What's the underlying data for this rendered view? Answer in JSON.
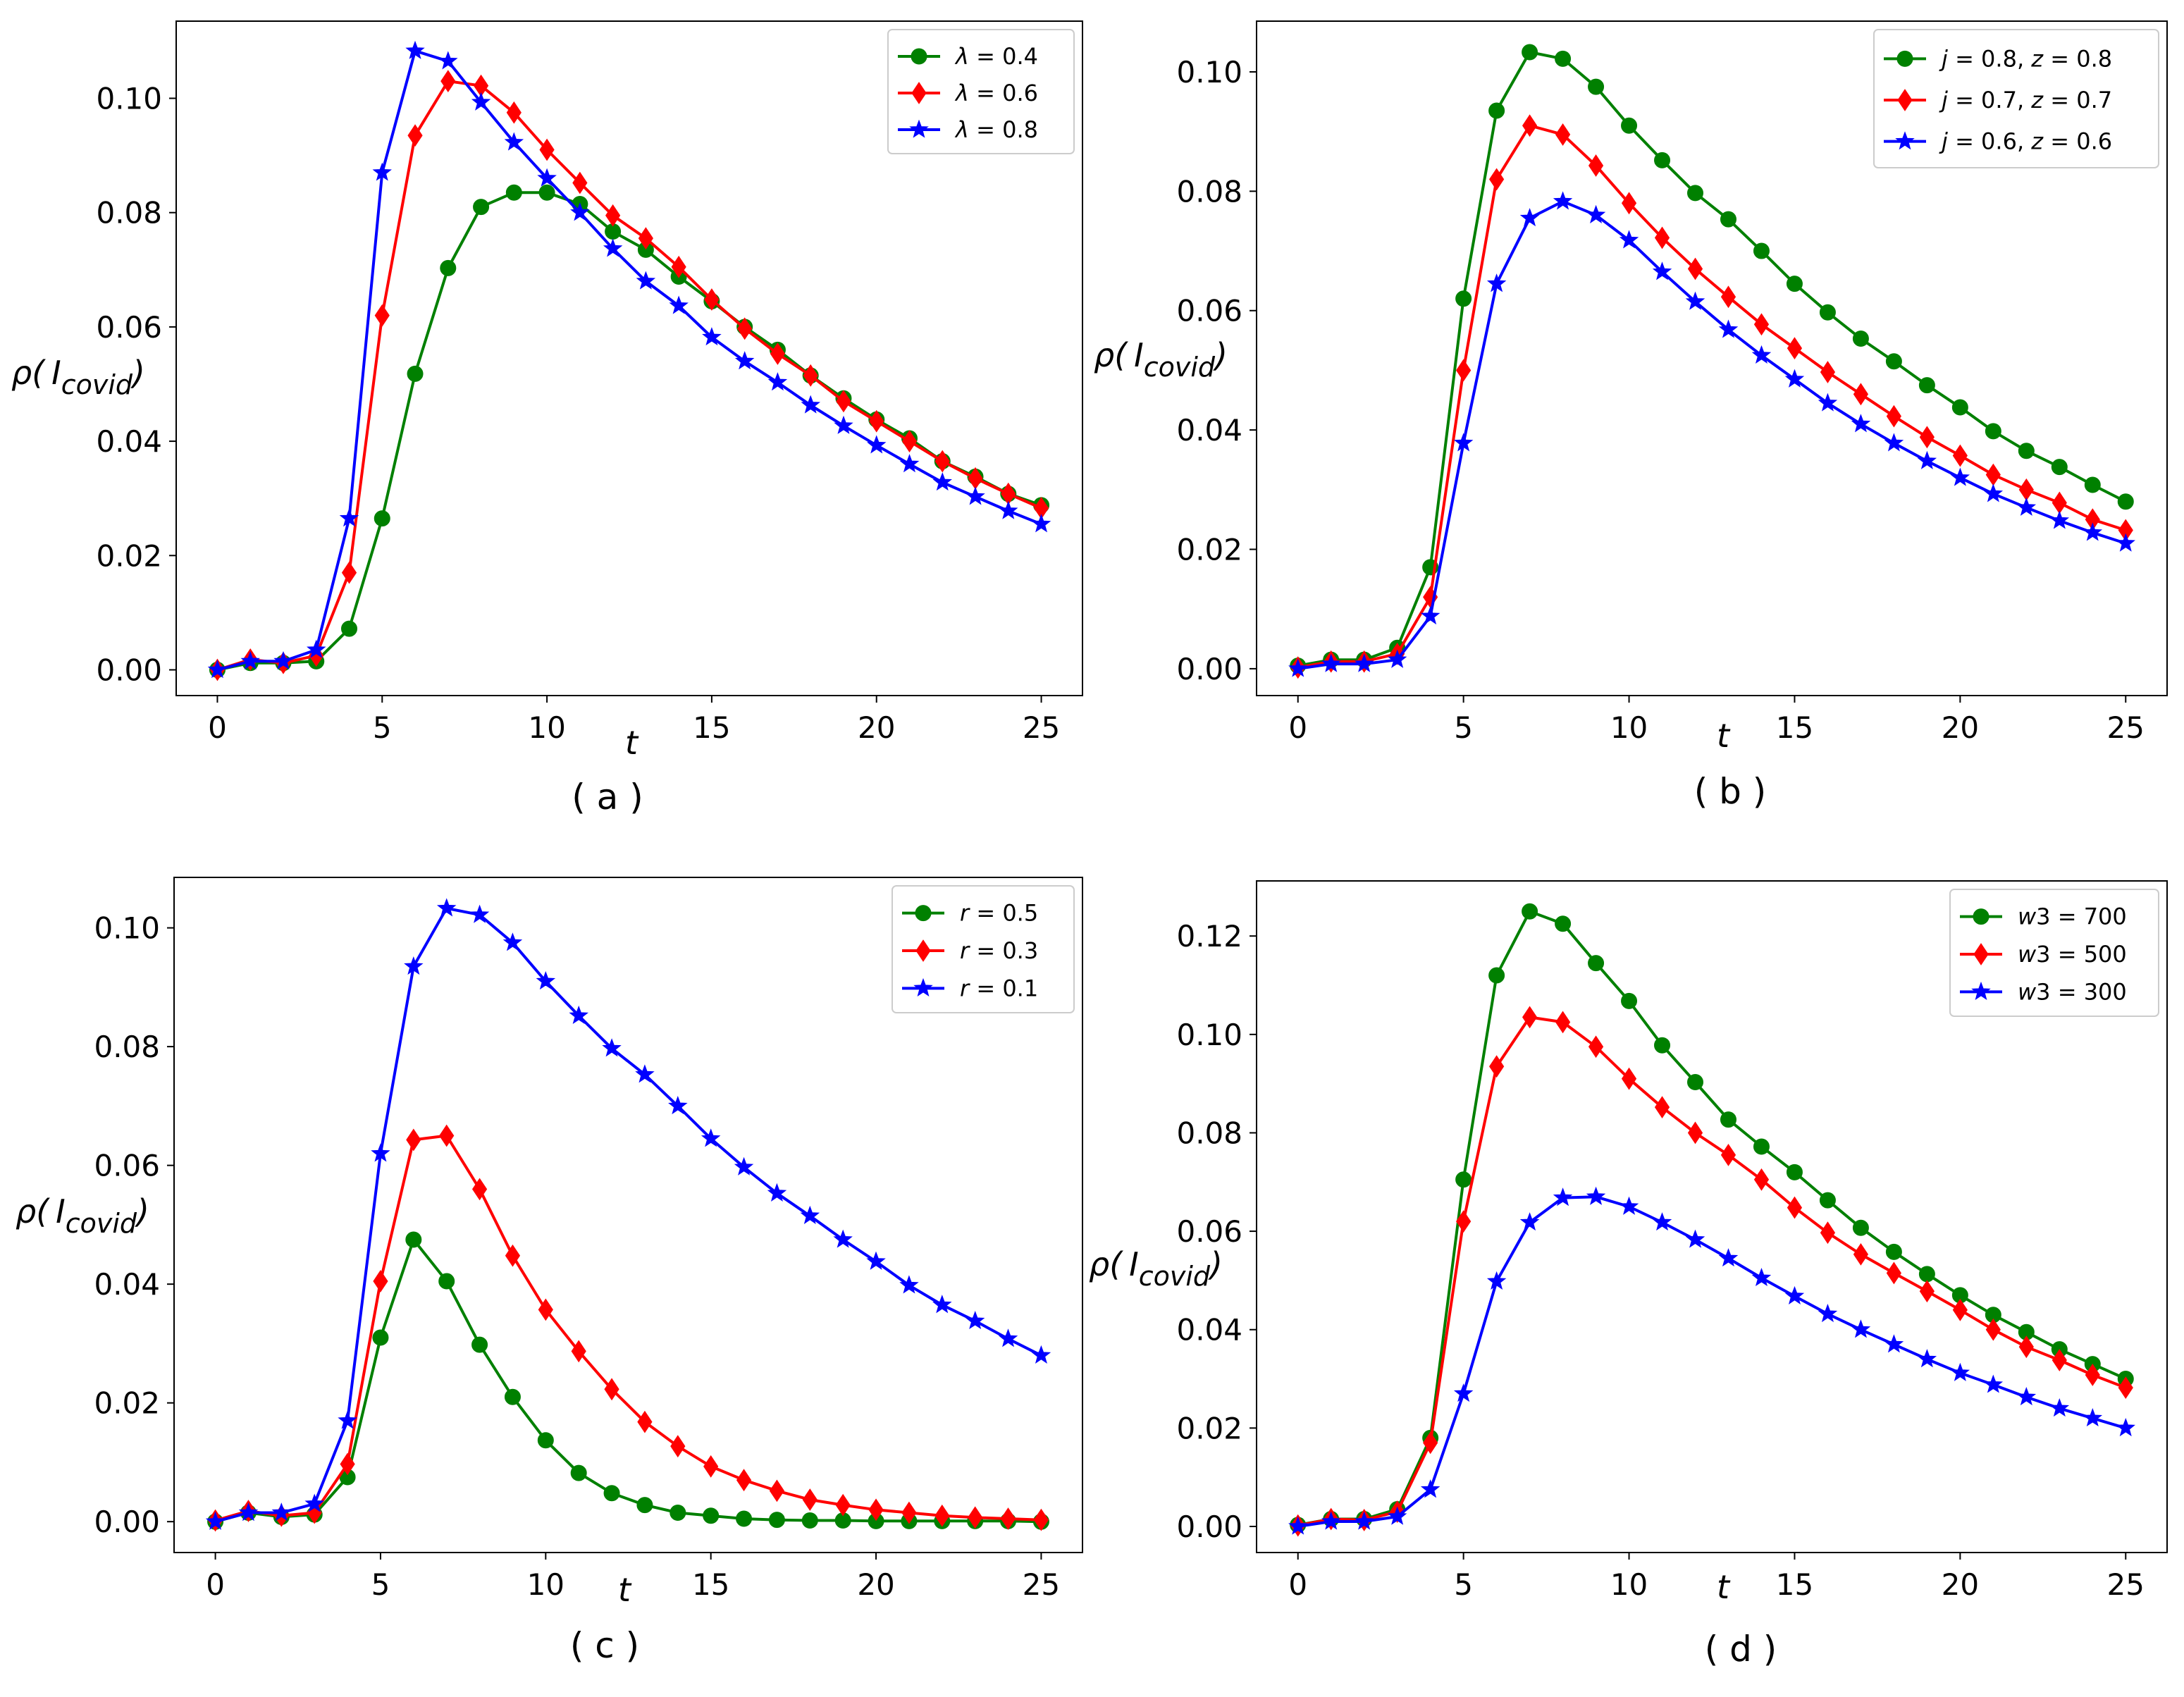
{
  "figure_captions": [
    "( a )",
    "( b )",
    "( c )",
    "( d )"
  ],
  "colors": {
    "green": "#008000",
    "red": "#ff0000",
    "blue": "#0000ff"
  },
  "chart_data": [
    {
      "type": "line",
      "caption": "( a )",
      "title": "",
      "xlabel": "t",
      "ylabel_symbol": "ρ(",
      "ylabel_var": "I",
      "ylabel_sub": "covid",
      "ylabel_close": ")",
      "xlim": [
        -1.25,
        26.25
      ],
      "ylim": [
        -0.0045,
        0.1135
      ],
      "xticks": [
        0,
        5,
        10,
        15,
        20,
        25
      ],
      "xtick_labels": [
        "0",
        "5",
        "10",
        "15",
        "20",
        "25"
      ],
      "yticks": [
        0.0,
        0.02,
        0.04,
        0.06,
        0.08,
        0.1
      ],
      "ytick_labels": [
        "0.00",
        "0.02",
        "0.04",
        "0.06",
        "0.08",
        "0.10"
      ],
      "legend_position": "top-right",
      "x": [
        0,
        1,
        2,
        3,
        4,
        5,
        6,
        7,
        8,
        9,
        10,
        11,
        12,
        13,
        14,
        15,
        16,
        17,
        18,
        19,
        20,
        21,
        22,
        23,
        24,
        25
      ],
      "series": [
        {
          "name": "λ = 0.4",
          "var": "λ",
          "rest": " = 0.4",
          "color": "#008000",
          "marker": "circle",
          "values": [
            0.0,
            0.0012,
            0.0012,
            0.0015,
            0.0072,
            0.0265,
            0.0518,
            0.0703,
            0.081,
            0.0835,
            0.0835,
            0.0815,
            0.0767,
            0.0735,
            0.0688,
            0.0645,
            0.06,
            0.056,
            0.0515,
            0.0475,
            0.0438,
            0.0405,
            0.0365,
            0.0338,
            0.0308,
            0.0288
          ]
        },
        {
          "name": "λ = 0.6",
          "var": "λ",
          "rest": " = 0.6",
          "color": "#ff0000",
          "marker": "diamond",
          "values": [
            0.0,
            0.0018,
            0.0012,
            0.0025,
            0.017,
            0.062,
            0.0935,
            0.103,
            0.1022,
            0.0975,
            0.091,
            0.0852,
            0.0795,
            0.0755,
            0.0705,
            0.0648,
            0.0597,
            0.0553,
            0.0515,
            0.047,
            0.0435,
            0.04,
            0.0365,
            0.0335,
            0.0308,
            0.0283
          ]
        },
        {
          "name": "λ = 0.8",
          "var": "λ",
          "rest": " = 0.8",
          "color": "#0000ff",
          "marker": "star",
          "values": [
            0.0,
            0.0015,
            0.0015,
            0.0035,
            0.0265,
            0.087,
            0.1083,
            0.1065,
            0.0993,
            0.0923,
            0.086,
            0.08,
            0.0737,
            0.068,
            0.0637,
            0.0582,
            0.054,
            0.0503,
            0.0463,
            0.0427,
            0.0393,
            0.036,
            0.0328,
            0.0303,
            0.0278,
            0.0255
          ]
        }
      ]
    },
    {
      "type": "line",
      "caption": "( b )",
      "title": "",
      "xlabel": "t",
      "ylabel_symbol": "ρ(",
      "ylabel_var": "I",
      "ylabel_sub": "covid",
      "ylabel_close": ")",
      "xlim": [
        -1.25,
        26.25
      ],
      "ylim": [
        -0.0045,
        0.1085
      ],
      "xticks": [
        0,
        5,
        10,
        15,
        20,
        25
      ],
      "xtick_labels": [
        "0",
        "5",
        "10",
        "15",
        "20",
        "25"
      ],
      "yticks": [
        0.0,
        0.02,
        0.04,
        0.06,
        0.08,
        0.1
      ],
      "ytick_labels": [
        "0.00",
        "0.02",
        "0.04",
        "0.06",
        "0.08",
        "0.10"
      ],
      "legend_position": "top-right",
      "x": [
        0,
        1,
        2,
        3,
        4,
        5,
        6,
        7,
        8,
        9,
        10,
        11,
        12,
        13,
        14,
        15,
        16,
        17,
        18,
        19,
        20,
        21,
        22,
        23,
        24,
        25
      ],
      "series": [
        {
          "name": "j = 0.8, z = 0.8",
          "var": "j",
          "rest": " = 0.8, ",
          "var2": "z",
          "rest2": " = 0.8",
          "color": "#008000",
          "marker": "circle",
          "values": [
            0.0005,
            0.0015,
            0.0015,
            0.0035,
            0.017,
            0.062,
            0.0935,
            0.1033,
            0.1022,
            0.0975,
            0.091,
            0.0852,
            0.0797,
            0.0753,
            0.07,
            0.0645,
            0.0597,
            0.0553,
            0.0515,
            0.0475,
            0.0438,
            0.0398,
            0.0365,
            0.0338,
            0.0308,
            0.028
          ]
        },
        {
          "name": "j = 0.7, z = 0.7",
          "var": "j",
          "rest": " = 0.7, ",
          "var2": "z",
          "rest2": " = 0.7",
          "color": "#ff0000",
          "marker": "diamond",
          "values": [
            0.0002,
            0.0012,
            0.0012,
            0.0025,
            0.012,
            0.05,
            0.082,
            0.091,
            0.0895,
            0.0843,
            0.078,
            0.0722,
            0.067,
            0.0623,
            0.0577,
            0.0537,
            0.0497,
            0.046,
            0.0423,
            0.0388,
            0.0357,
            0.0325,
            0.03,
            0.0278,
            0.025,
            0.0232
          ]
        },
        {
          "name": "j = 0.6, z = 0.6",
          "var": "j",
          "rest": " = 0.6, ",
          "var2": "z",
          "rest2": " = 0.6",
          "color": "#0000ff",
          "marker": "star",
          "values": [
            0.0,
            0.0008,
            0.0008,
            0.0015,
            0.0088,
            0.0378,
            0.0645,
            0.0755,
            0.0783,
            0.076,
            0.0718,
            0.0665,
            0.0615,
            0.0568,
            0.0525,
            0.0485,
            0.0445,
            0.041,
            0.0378,
            0.0348,
            0.032,
            0.0293,
            0.027,
            0.0248,
            0.0228,
            0.021
          ]
        }
      ]
    },
    {
      "type": "line",
      "caption": "( c )",
      "title": "",
      "xlabel": "t",
      "ylabel_symbol": "ρ(",
      "ylabel_var": "I",
      "ylabel_sub": "covid",
      "ylabel_close": ")",
      "xlim": [
        -1.25,
        26.25
      ],
      "ylim": [
        -0.0052,
        0.1085
      ],
      "xticks": [
        0,
        5,
        10,
        15,
        20,
        25
      ],
      "xtick_labels": [
        "0",
        "5",
        "10",
        "15",
        "20",
        "25"
      ],
      "yticks": [
        0.0,
        0.02,
        0.04,
        0.06,
        0.08,
        0.1
      ],
      "ytick_labels": [
        "0.00",
        "0.02",
        "0.04",
        "0.06",
        "0.08",
        "0.10"
      ],
      "legend_position": "top-right",
      "x": [
        0,
        1,
        2,
        3,
        4,
        5,
        6,
        7,
        8,
        9,
        10,
        11,
        12,
        13,
        14,
        15,
        16,
        17,
        18,
        19,
        20,
        21,
        22,
        23,
        24,
        25
      ],
      "series": [
        {
          "name": "r = 0.5",
          "var": "r",
          "rest": " = 0.5",
          "color": "#008000",
          "marker": "circle",
          "values": [
            0.0,
            0.0015,
            0.0008,
            0.0012,
            0.0075,
            0.031,
            0.0475,
            0.0405,
            0.0298,
            0.021,
            0.0137,
            0.0082,
            0.0048,
            0.0028,
            0.0015,
            0.001,
            0.0005,
            0.0003,
            0.0002,
            0.0002,
            0.0001,
            0.0001,
            0.0001,
            0.0001,
            0.0001,
            0.0
          ]
        },
        {
          "name": "r = 0.3",
          "var": "r",
          "rest": " = 0.3",
          "color": "#ff0000",
          "marker": "diamond",
          "values": [
            0.0002,
            0.0018,
            0.001,
            0.0015,
            0.0097,
            0.0405,
            0.0643,
            0.065,
            0.056,
            0.0448,
            0.0357,
            0.0287,
            0.0223,
            0.0168,
            0.0127,
            0.0093,
            0.007,
            0.0052,
            0.0037,
            0.0028,
            0.002,
            0.0015,
            0.001,
            0.0007,
            0.0005,
            0.0003
          ]
        },
        {
          "name": "r = 0.1",
          "var": "r",
          "rest": " = 0.1",
          "color": "#0000ff",
          "marker": "star",
          "values": [
            0.0,
            0.0015,
            0.0015,
            0.003,
            0.017,
            0.062,
            0.0935,
            0.1033,
            0.1022,
            0.0975,
            0.091,
            0.0852,
            0.0797,
            0.0753,
            0.07,
            0.0645,
            0.0597,
            0.0553,
            0.0515,
            0.0475,
            0.0438,
            0.0398,
            0.0365,
            0.0338,
            0.0308,
            0.028
          ]
        }
      ]
    },
    {
      "type": "line",
      "caption": "( d )",
      "title": "",
      "xlabel": "t",
      "ylabel_symbol": "ρ(",
      "ylabel_var": "I",
      "ylabel_sub": "covid",
      "ylabel_close": ")",
      "xlim": [
        -1.25,
        26.25
      ],
      "ylim": [
        -0.0053,
        0.1312
      ],
      "xticks": [
        0,
        5,
        10,
        15,
        20,
        25
      ],
      "xtick_labels": [
        "0",
        "5",
        "10",
        "15",
        "20",
        "25"
      ],
      "yticks": [
        0.0,
        0.02,
        0.04,
        0.06,
        0.08,
        0.1,
        0.12
      ],
      "ytick_labels": [
        "0.00",
        "0.02",
        "0.04",
        "0.06",
        "0.08",
        "0.10",
        "0.12"
      ],
      "legend_position": "top-right",
      "x": [
        0,
        1,
        2,
        3,
        4,
        5,
        6,
        7,
        8,
        9,
        10,
        11,
        12,
        13,
        14,
        15,
        16,
        17,
        18,
        19,
        20,
        21,
        22,
        23,
        24,
        25
      ],
      "series": [
        {
          "name": "w3 = 700",
          "var": "w",
          "rest": "3 = 700",
          "color": "#008000",
          "marker": "circle",
          "values": [
            0.0003,
            0.0015,
            0.0015,
            0.0035,
            0.018,
            0.0705,
            0.112,
            0.125,
            0.1225,
            0.1145,
            0.1068,
            0.0978,
            0.0903,
            0.0827,
            0.0772,
            0.072,
            0.0663,
            0.0607,
            0.0558,
            0.0513,
            0.047,
            0.043,
            0.0395,
            0.036,
            0.033,
            0.03
          ]
        },
        {
          "name": "w3 = 500",
          "var": "w",
          "rest": "3 = 500",
          "color": "#ff0000",
          "marker": "diamond",
          "values": [
            0.0002,
            0.0015,
            0.0013,
            0.003,
            0.017,
            0.062,
            0.0935,
            0.1035,
            0.1025,
            0.0975,
            0.091,
            0.0852,
            0.08,
            0.0755,
            0.0705,
            0.0648,
            0.0597,
            0.0553,
            0.0515,
            0.0478,
            0.044,
            0.04,
            0.0365,
            0.0338,
            0.0308,
            0.0282
          ]
        },
        {
          "name": "w3 = 300",
          "var": "w",
          "rest": "3 = 300",
          "color": "#0000ff",
          "marker": "star",
          "values": [
            0.0,
            0.001,
            0.001,
            0.002,
            0.0075,
            0.027,
            0.0498,
            0.0618,
            0.0668,
            0.067,
            0.065,
            0.0618,
            0.0583,
            0.0545,
            0.0505,
            0.0468,
            0.0432,
            0.04,
            0.037,
            0.034,
            0.0312,
            0.0288,
            0.0263,
            0.024,
            0.022,
            0.02
          ]
        }
      ]
    }
  ]
}
